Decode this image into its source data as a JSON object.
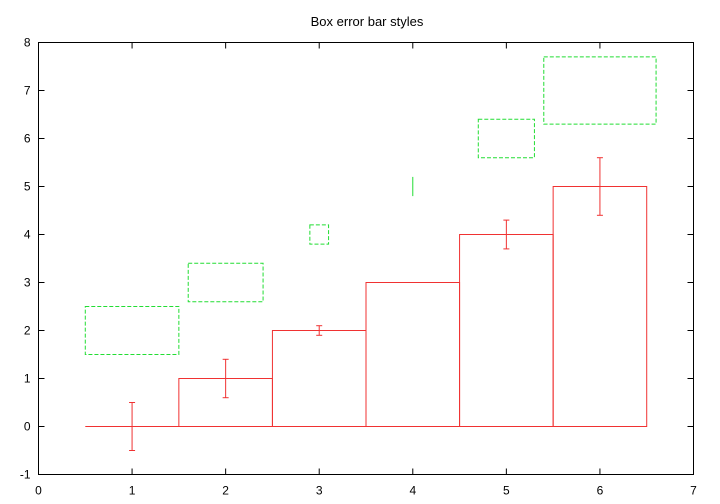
{
  "chart_data": {
    "type": "bar",
    "title": "Box error bar styles",
    "xlabel": "",
    "ylabel": "",
    "xlim": [
      0,
      7
    ],
    "ylim": [
      -1,
      8
    ],
    "xticks": [
      "0",
      "1",
      "2",
      "3",
      "4",
      "5",
      "6",
      "7"
    ],
    "yticks": [
      "-1",
      "0",
      "1",
      "2",
      "3",
      "4",
      "5",
      "6",
      "7",
      "8"
    ],
    "grid": false,
    "colors": {
      "red": "#f03232",
      "green": "#22dd33"
    },
    "series": [
      {
        "style": "boxes with y error bars",
        "color": "red",
        "points": [
          {
            "x": 1,
            "width": 1,
            "y": 0,
            "y_err": 0.5
          },
          {
            "x": 2,
            "width": 1,
            "y": 1,
            "y_err": 0.4
          },
          {
            "x": 3,
            "width": 1,
            "y": 2,
            "y_err": 0.1
          },
          {
            "x": 4,
            "width": 1,
            "y": 3,
            "y_err": 0.0
          },
          {
            "x": 5,
            "width": 1,
            "y": 4,
            "y_err": 0.3
          },
          {
            "x": 6,
            "width": 1,
            "y": 5,
            "y_err": 0.6
          }
        ]
      },
      {
        "style": "boxxy error boxes (dashed)",
        "color": "green",
        "points": [
          {
            "x": 1,
            "y": 2,
            "x_err": 0.5,
            "y_err": 0.5
          },
          {
            "x": 2,
            "y": 3,
            "x_err": 0.4,
            "y_err": 0.4
          },
          {
            "x": 3,
            "y": 4,
            "x_err": 0.1,
            "y_err": 0.2
          },
          {
            "x": 4,
            "y": 5,
            "x_err": 0.0,
            "y_err": 0.2
          },
          {
            "x": 5,
            "y": 6,
            "x_err": 0.3,
            "y_err": 0.4
          },
          {
            "x": 6,
            "y": 7,
            "x_err": 0.6,
            "y_err": 0.7
          }
        ]
      }
    ]
  }
}
